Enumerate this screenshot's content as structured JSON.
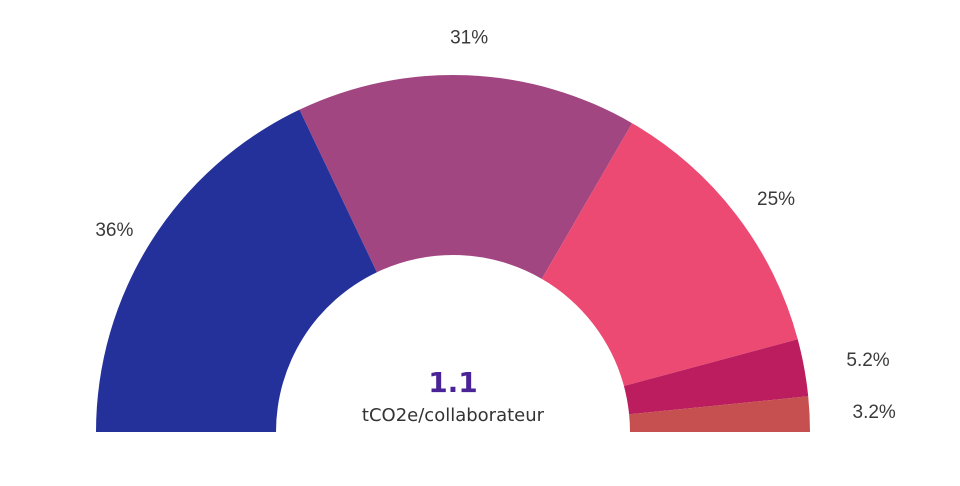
{
  "chart_data": {
    "type": "pie",
    "variant": "half-donut",
    "slices": [
      {
        "label": "36%",
        "value": 36,
        "color": "#25319a"
      },
      {
        "label": "31%",
        "value": 31,
        "color": "#a24682"
      },
      {
        "label": "25%",
        "value": 25,
        "color": "#ec4a72"
      },
      {
        "label": "5.2%",
        "value": 5.2,
        "color": "#bb1d5e"
      },
      {
        "label": "3.2%",
        "value": 3.2,
        "color": "#c6504f"
      }
    ],
    "center": {
      "value": "1.1",
      "unit": "tCO2e/collaborateur",
      "value_color": "#4a2396"
    }
  }
}
